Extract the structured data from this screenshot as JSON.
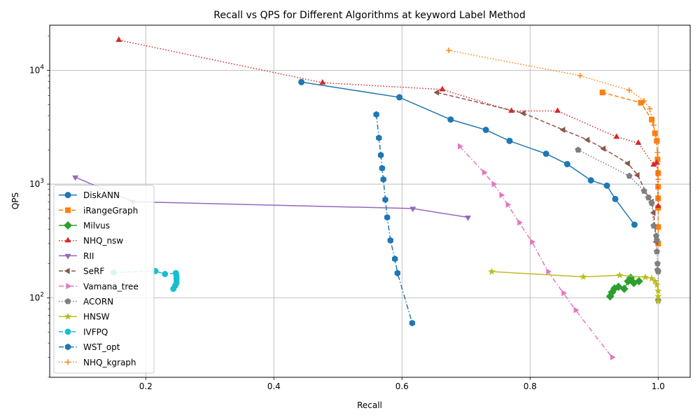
{
  "chart_data": {
    "type": "line",
    "title": "Recall vs QPS for Different Algorithms at keyword Label Method",
    "xlabel": "Recall",
    "ylabel": "QPS",
    "xlim": [
      0.05,
      1.05
    ],
    "ylim": [
      20,
      25000
    ],
    "yscale": "log",
    "grid": true,
    "legend_position": "lower-left",
    "x_ticks": [
      {
        "value": 0.2,
        "label": "0.2"
      },
      {
        "value": 0.4,
        "label": "0.4"
      },
      {
        "value": 0.6,
        "label": "0.6"
      },
      {
        "value": 0.8,
        "label": "0.8"
      },
      {
        "value": 1.0,
        "label": "1.0"
      }
    ],
    "y_ticks": [
      {
        "value": 100,
        "base": "10",
        "exp": "2"
      },
      {
        "value": 1000,
        "base": "10",
        "exp": "3"
      },
      {
        "value": 10000,
        "base": "10",
        "exp": "4"
      }
    ],
    "series": [
      {
        "name": "DiskANN",
        "color": "#1f77b4",
        "marker": "circle",
        "dash": "solid",
        "x": [
          0.443,
          0.596,
          0.676,
          0.731,
          0.768,
          0.825,
          0.858,
          0.895,
          0.92,
          0.933,
          0.963
        ],
        "y": [
          7900,
          5800,
          3700,
          3000,
          2400,
          1850,
          1500,
          1080,
          970,
          740,
          440
        ]
      },
      {
        "name": "iRangeGraph",
        "color": "#ff7f0e",
        "marker": "square",
        "dash": "dashed",
        "x": [
          0.913,
          0.973,
          0.99,
          0.995,
          0.998,
          0.999,
          1.0,
          1.0,
          1.0,
          1.0,
          1.0,
          1.0
        ],
        "y": [
          6400,
          5200,
          3700,
          2800,
          2400,
          1650,
          1250,
          950,
          750,
          620,
          420,
          300
        ]
      },
      {
        "name": "Milvus",
        "color": "#2ca02c",
        "marker": "diamond",
        "dash": "solid",
        "x": [
          0.925,
          0.928,
          0.932,
          0.938,
          0.947,
          0.953,
          0.957,
          0.962,
          0.97
        ],
        "y": [
          103,
          112,
          121,
          125,
          120,
          140,
          150,
          135,
          140
        ]
      },
      {
        "name": "NHQ_nsw",
        "color": "#d62728",
        "marker": "triangle-up",
        "dash": "dotted",
        "x": [
          0.158,
          0.476,
          0.663,
          0.771,
          0.843,
          0.935,
          0.969,
          0.993,
          0.998,
          1.0
        ],
        "y": [
          18500,
          7800,
          6800,
          4400,
          4400,
          2600,
          2300,
          1480,
          1540,
          640
        ]
      },
      {
        "name": "RII",
        "color": "#9467bd",
        "marker": "triangle-down",
        "dash": "solid",
        "x": [
          0.09,
          0.18,
          0.617,
          0.703
        ],
        "y": [
          1150,
          700,
          610,
          510
        ]
      },
      {
        "name": "SeRF",
        "color": "#8c564b",
        "marker": "triangle-left",
        "dash": "dashed",
        "x": [
          0.655,
          0.79,
          0.852,
          0.89,
          0.915,
          0.953,
          0.968,
          0.985,
          0.99,
          0.993,
          0.997
        ],
        "y": [
          6400,
          4200,
          3000,
          2450,
          2050,
          1520,
          1200,
          760,
          700,
          560,
          310
        ]
      },
      {
        "name": "Vamana_tree",
        "color": "#e377c2",
        "marker": "triangle-right",
        "dash": "dashdot",
        "x": [
          0.69,
          0.728,
          0.743,
          0.755,
          0.765,
          0.783,
          0.803,
          0.828,
          0.852,
          0.871,
          0.928
        ],
        "y": [
          2150,
          1270,
          1000,
          800,
          660,
          460,
          310,
          170,
          110,
          78,
          30
        ]
      },
      {
        "name": "ACORN",
        "color": "#7f7f7f",
        "marker": "pentagon",
        "dash": "dotted",
        "x": [
          0.875,
          0.955,
          0.978,
          0.985,
          0.99,
          0.993,
          0.997,
          0.998,
          0.998,
          0.999,
          0.999,
          1.0,
          1.0
        ],
        "y": [
          2000,
          1180,
          870,
          760,
          680,
          430,
          350,
          320,
          255,
          200,
          175,
          170,
          95
        ]
      },
      {
        "name": "HNSW",
        "color": "#bcbd22",
        "marker": "star",
        "dash": "solid",
        "x": [
          0.74,
          0.883,
          0.94,
          0.98,
          0.99,
          0.995,
          0.998,
          1.0,
          1.0,
          1.0
        ],
        "y": [
          170,
          153,
          158,
          152,
          148,
          140,
          130,
          115,
          103,
          93
        ]
      },
      {
        "name": "IVFPQ",
        "color": "#17becf",
        "marker": "octagon",
        "dash": "dashed",
        "x": [
          0.15,
          0.215,
          0.23,
          0.247,
          0.248,
          0.248,
          0.248,
          0.246,
          0.243
        ],
        "y": [
          167,
          172,
          162,
          165,
          155,
          145,
          135,
          128,
          120
        ]
      },
      {
        "name": "WST_opt",
        "color": "#1f77b4",
        "marker": "hexagon",
        "dash": "dashdot",
        "x": [
          0.56,
          0.564,
          0.567,
          0.569,
          0.571,
          0.574,
          0.577,
          0.582,
          0.589,
          0.593,
          0.616
        ],
        "y": [
          4100,
          2550,
          1800,
          1380,
          1100,
          730,
          510,
          320,
          220,
          165,
          60
        ]
      },
      {
        "name": "NHQ_kgraph",
        "color": "#ff7f0e",
        "marker": "plus",
        "dash": "dotted",
        "x": [
          0.673,
          0.878,
          0.955,
          0.978,
          0.987,
          0.993,
          0.997,
          0.999,
          1.0
        ],
        "y": [
          15000,
          9000,
          6700,
          5400,
          4600,
          3300,
          2400,
          1900,
          1100
        ]
      }
    ]
  }
}
